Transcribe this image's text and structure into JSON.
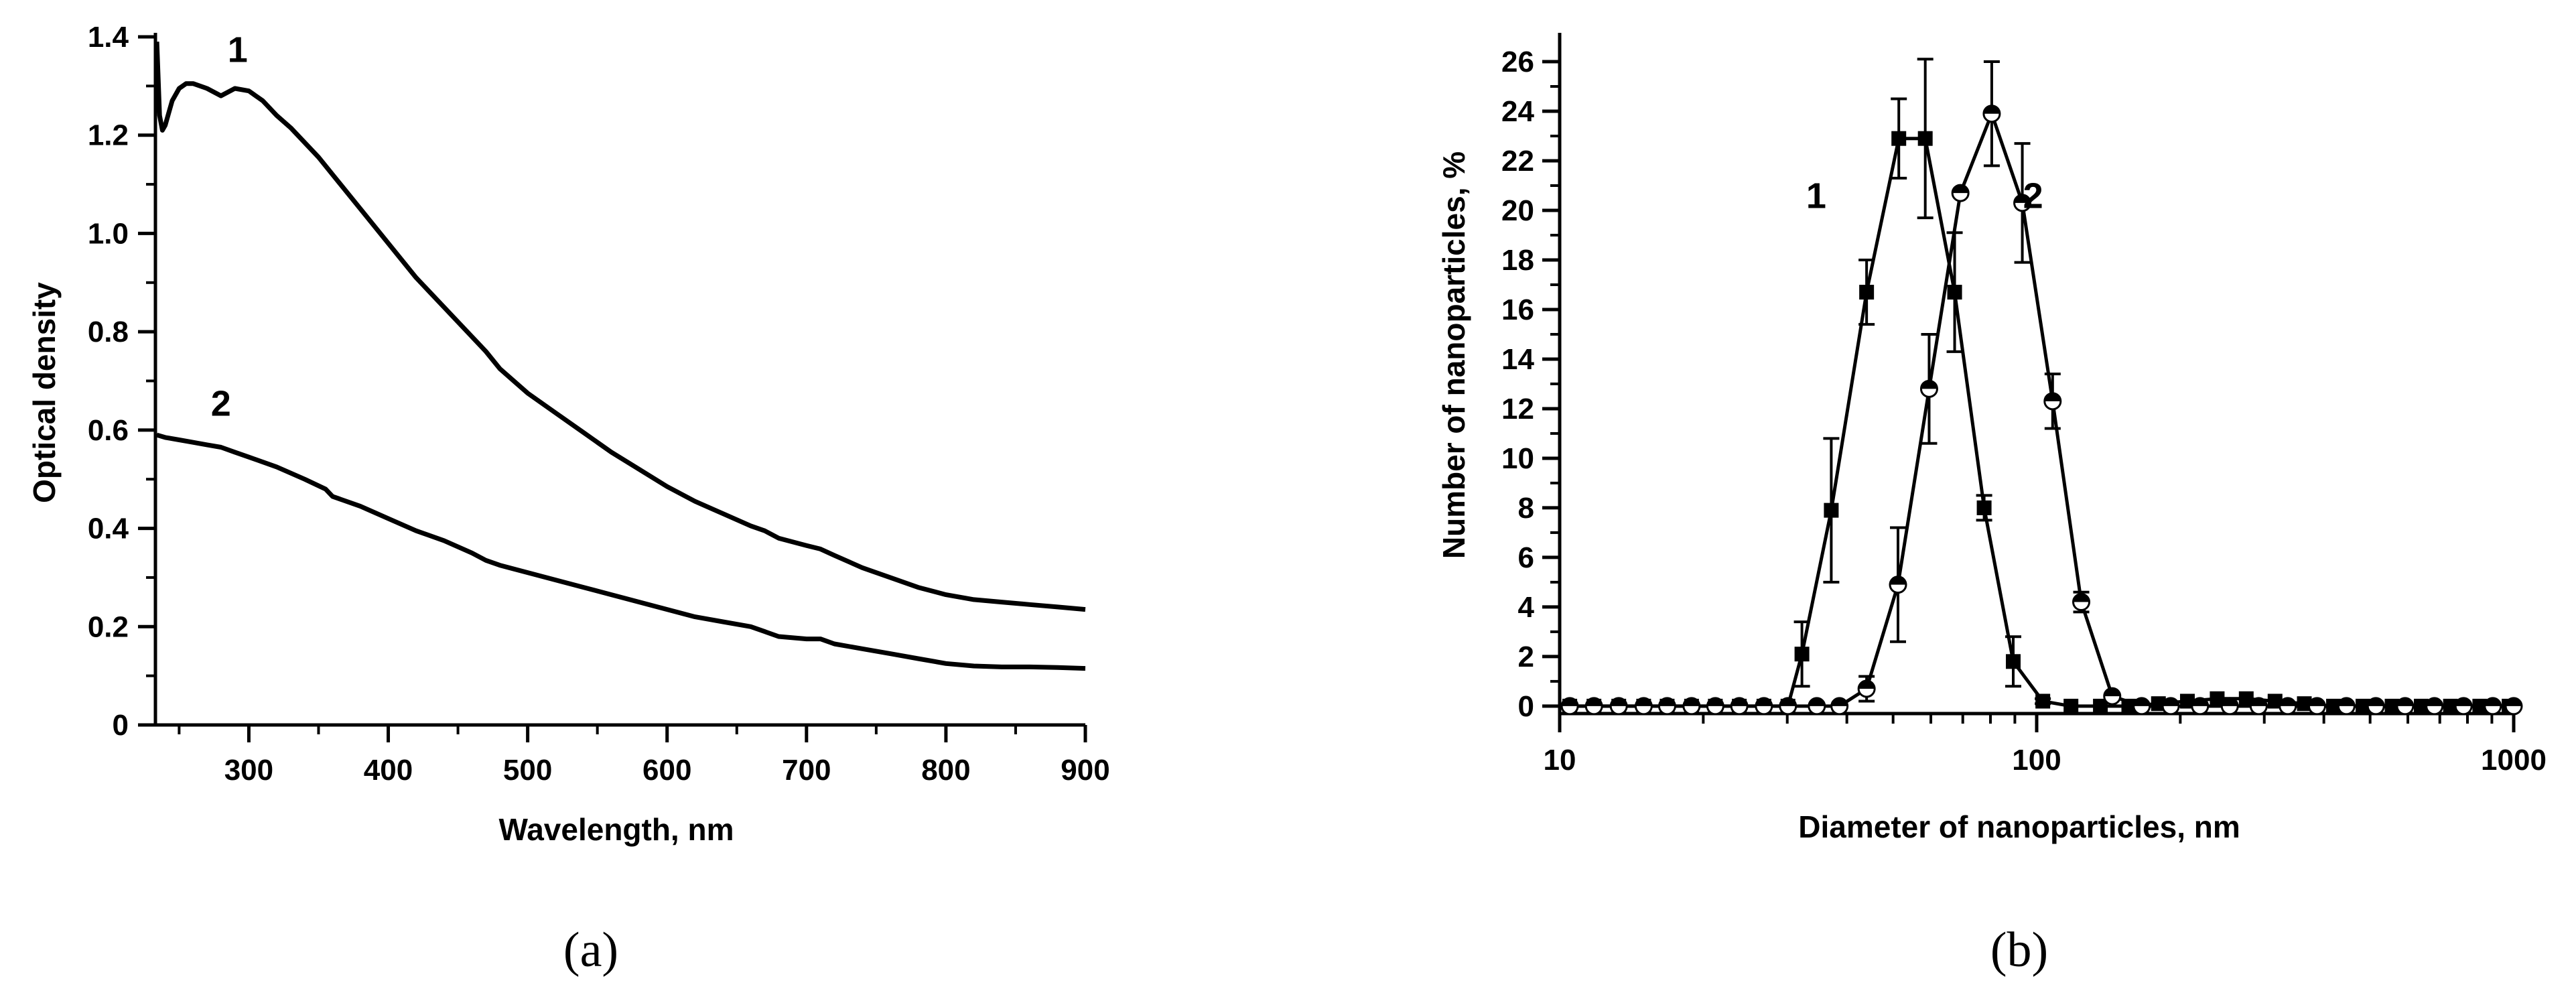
{
  "panels": [
    {
      "id": "a",
      "panel_label": "(a)",
      "chart_data": {
        "type": "line",
        "title": "",
        "xlabel": "Wavelength, nm",
        "ylabel": "Optical density",
        "xlim": [
          233,
          900
        ],
        "ylim": [
          0,
          1.4
        ],
        "xticks": [
          300,
          400,
          500,
          600,
          700,
          800,
          900
        ],
        "xtick_labels": [
          "300",
          "400",
          "500",
          "600",
          "700",
          "800",
          "900"
        ],
        "yticks": [
          0,
          0.2,
          0.4,
          0.6,
          0.8,
          1.0,
          1.2,
          1.4
        ],
        "ytick_labels": [
          "0",
          "0.2",
          "0.4",
          "0.6",
          "0.8",
          "1.0",
          "1.2",
          "1.4"
        ],
        "grid": false,
        "series": [
          {
            "curve_label": "1",
            "x": [
              234,
              236,
              238,
              240,
              245,
              250,
              255,
              260,
              270,
              280,
              290,
              300,
              310,
              320,
              330,
              340,
              350,
              360,
              380,
              400,
              420,
              440,
              460,
              470,
              480,
              500,
              520,
              540,
              560,
              580,
              600,
              620,
              640,
              660,
              670,
              680,
              700,
              710,
              720,
              740,
              760,
              780,
              800,
              820,
              840,
              860,
              880,
              900
            ],
            "y": [
              1.39,
              1.24,
              1.21,
              1.22,
              1.27,
              1.295,
              1.305,
              1.305,
              1.295,
              1.28,
              1.295,
              1.29,
              1.27,
              1.24,
              1.215,
              1.185,
              1.155,
              1.12,
              1.05,
              0.98,
              0.91,
              0.85,
              0.79,
              0.76,
              0.725,
              0.675,
              0.635,
              0.595,
              0.555,
              0.52,
              0.485,
              0.455,
              0.43,
              0.405,
              0.395,
              0.38,
              0.365,
              0.358,
              0.345,
              0.32,
              0.3,
              0.28,
              0.265,
              0.255,
              0.25,
              0.245,
              0.24,
              0.235
            ]
          },
          {
            "curve_label": "2",
            "x": [
              234,
              240,
              250,
              260,
              270,
              280,
              290,
              300,
              320,
              340,
              355,
              360,
              380,
              400,
              420,
              440,
              460,
              470,
              480,
              500,
              520,
              540,
              560,
              580,
              600,
              620,
              640,
              660,
              670,
              680,
              700,
              710,
              720,
              740,
              760,
              780,
              800,
              820,
              840,
              860,
              880,
              900
            ],
            "y": [
              0.59,
              0.585,
              0.58,
              0.575,
              0.57,
              0.565,
              0.555,
              0.545,
              0.525,
              0.5,
              0.48,
              0.465,
              0.445,
              0.42,
              0.395,
              0.375,
              0.35,
              0.335,
              0.325,
              0.31,
              0.295,
              0.28,
              0.265,
              0.25,
              0.235,
              0.22,
              0.21,
              0.2,
              0.19,
              0.18,
              0.175,
              0.175,
              0.165,
              0.155,
              0.145,
              0.135,
              0.125,
              0.12,
              0.118,
              0.118,
              0.117,
              0.115
            ]
          }
        ],
        "curve_label_anchors": [
          {
            "text": "1",
            "x": 292,
            "y": 1.3
          },
          {
            "text": "2",
            "x": 280,
            "y": 0.58
          }
        ]
      }
    },
    {
      "id": "b",
      "panel_label": "(b)",
      "chart_data": {
        "type": "scatter",
        "title": "",
        "xlabel": "Diameter of nanoparticles, nm",
        "ylabel": "Number of nanoparticles, %",
        "xscale": "log",
        "xlim": [
          10,
          1000
        ],
        "ylim": [
          -0.3,
          27
        ],
        "xticks": [
          10,
          100,
          1000
        ],
        "xtick_labels": [
          "10",
          "100",
          "1000"
        ],
        "yticks": [
          0,
          2,
          4,
          6,
          8,
          10,
          12,
          14,
          16,
          18,
          20,
          22,
          24,
          26
        ],
        "ytick_labels": [
          "0",
          "2",
          "4",
          "6",
          "8",
          "10",
          "12",
          "14",
          "16",
          "18",
          "20",
          "22",
          "24",
          "26"
        ],
        "grid": false,
        "series": [
          {
            "curve_label": "1",
            "marker": "filled-square",
            "x": [
              10.5,
              11.8,
              13.3,
              15,
              16.8,
              18.9,
              21.2,
              23.8,
              26.8,
              30.1,
              32.2,
              37.1,
              44,
              51.4,
              58.4,
              67.3,
              77.6,
              89.3,
              103,
              118,
              136,
              156,
              180,
              207,
              239,
              275,
              316,
              364,
              419,
              483,
              556,
              640,
              737,
              849,
              978
            ],
            "y": [
              0,
              0,
              0,
              0,
              0,
              0,
              0,
              0,
              0,
              0,
              2.1,
              7.9,
              16.7,
              22.9,
              22.9,
              16.7,
              8.0,
              1.8,
              0.2,
              0,
              0,
              0,
              0.1,
              0.2,
              0.3,
              0.3,
              0.2,
              0.1,
              0,
              0,
              0,
              0,
              0,
              0,
              0
            ],
            "err": [
              0,
              0,
              0,
              0,
              0,
              0,
              0,
              0,
              0,
              0,
              1.3,
              2.9,
              1.3,
              1.6,
              3.2,
              2.4,
              0.5,
              1.0,
              0.1,
              0,
              0,
              0,
              0,
              0,
              0,
              0,
              0,
              0,
              0,
              0,
              0,
              0,
              0,
              0,
              0
            ]
          },
          {
            "curve_label": "2",
            "marker": "half-filled-circle",
            "x": [
              10.5,
              11.8,
              13.3,
              15,
              16.8,
              18.9,
              21.2,
              23.8,
              26.8,
              30.1,
              34.6,
              38.6,
              44,
              51.2,
              59.5,
              69.2,
              80.5,
              93.3,
              108,
              124,
              144,
              166,
              191,
              220,
              254,
              292,
              336,
              387,
              446,
              514,
              592,
              682,
              785,
              904,
              1000
            ],
            "y": [
              0,
              0,
              0,
              0,
              0,
              0,
              0,
              0,
              0,
              0,
              0,
              0,
              0.7,
              4.9,
              12.8,
              20.7,
              23.9,
              20.3,
              12.3,
              4.2,
              0.4,
              0,
              0,
              0,
              0,
              0,
              0,
              0,
              0,
              0,
              0,
              0,
              0,
              0,
              0
            ],
            "err": [
              0,
              0,
              0,
              0,
              0,
              0,
              0,
              0,
              0,
              0,
              0,
              0,
              0.5,
              2.3,
              2.2,
              0,
              2.1,
              2.4,
              1.1,
              0.4,
              0,
              0,
              0,
              0,
              0,
              0,
              0,
              0,
              0,
              0,
              0,
              0,
              0,
              0,
              0
            ]
          }
        ],
        "curve_label_anchors": [
          {
            "text": "1",
            "x": 34.5,
            "y": 20.1
          },
          {
            "text": "2",
            "x": 98.3,
            "y": 20.1
          }
        ]
      }
    }
  ]
}
